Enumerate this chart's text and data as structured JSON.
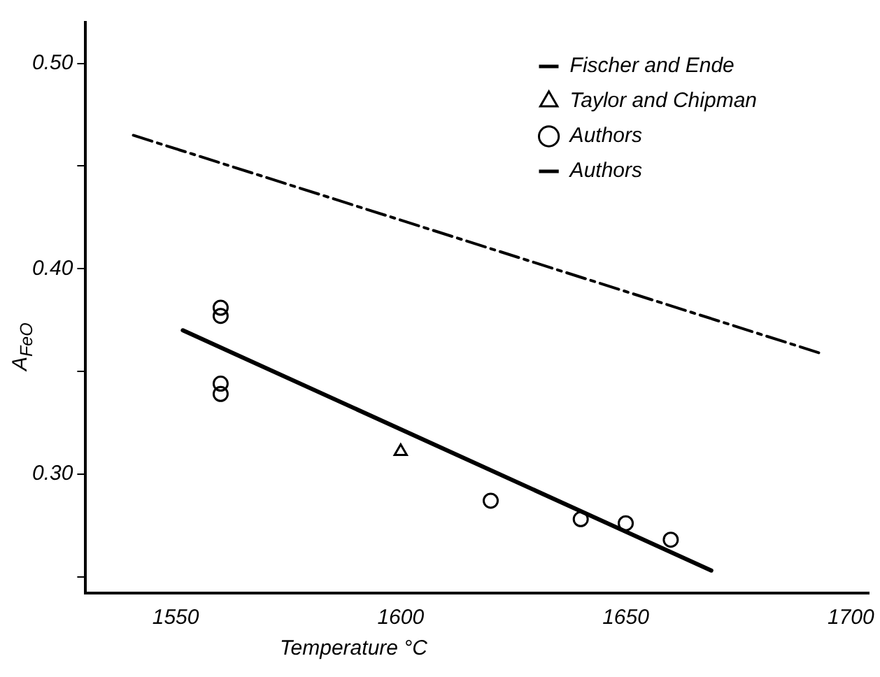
{
  "chart_data": {
    "type": "line",
    "xlabel": "Temperature °C",
    "ylabel": "A$_{FeO}$",
    "xlim": [
      1530,
      1704
    ],
    "ylim": [
      0.242,
      0.52
    ],
    "xticks": [
      1550,
      1600,
      1650,
      1700
    ],
    "yticks": [
      {
        "value": 0.25,
        "label": null
      },
      {
        "value": 0.3,
        "label": "0.30"
      },
      {
        "value": 0.35,
        "label": null
      },
      {
        "value": 0.4,
        "label": "0.40"
      },
      {
        "value": 0.45,
        "label": null
      },
      {
        "value": 0.5,
        "label": "0.50"
      }
    ],
    "grid": false,
    "legend": "top right",
    "series": [
      {
        "name": "Fischer and Ende",
        "type": "line",
        "color": "#000000",
        "line_style": "dashed",
        "marker": "none",
        "x": [
          1540.6,
          1693
        ],
        "values": [
          0.465,
          0.359
        ]
      },
      {
        "name": "Taylor and Chipman",
        "type": "scatter",
        "color": "#000000",
        "marker": "triangle",
        "x": [
          1600
        ],
        "values": [
          0.311
        ]
      },
      {
        "name": "Authors",
        "type": "scatter",
        "color": "#000000",
        "marker": "circle",
        "x": [
          1560,
          1560,
          1560,
          1560,
          1620,
          1640,
          1650,
          1660
        ],
        "values": [
          0.381,
          0.377,
          0.344,
          0.339,
          0.287,
          0.278,
          0.276,
          0.268
        ]
      },
      {
        "name": "Authors",
        "type": "line",
        "color": "#000000",
        "line_style": "solid",
        "marker": "none",
        "x": [
          1551.6,
          1669
        ],
        "values": [
          0.37,
          0.253
        ]
      }
    ]
  }
}
